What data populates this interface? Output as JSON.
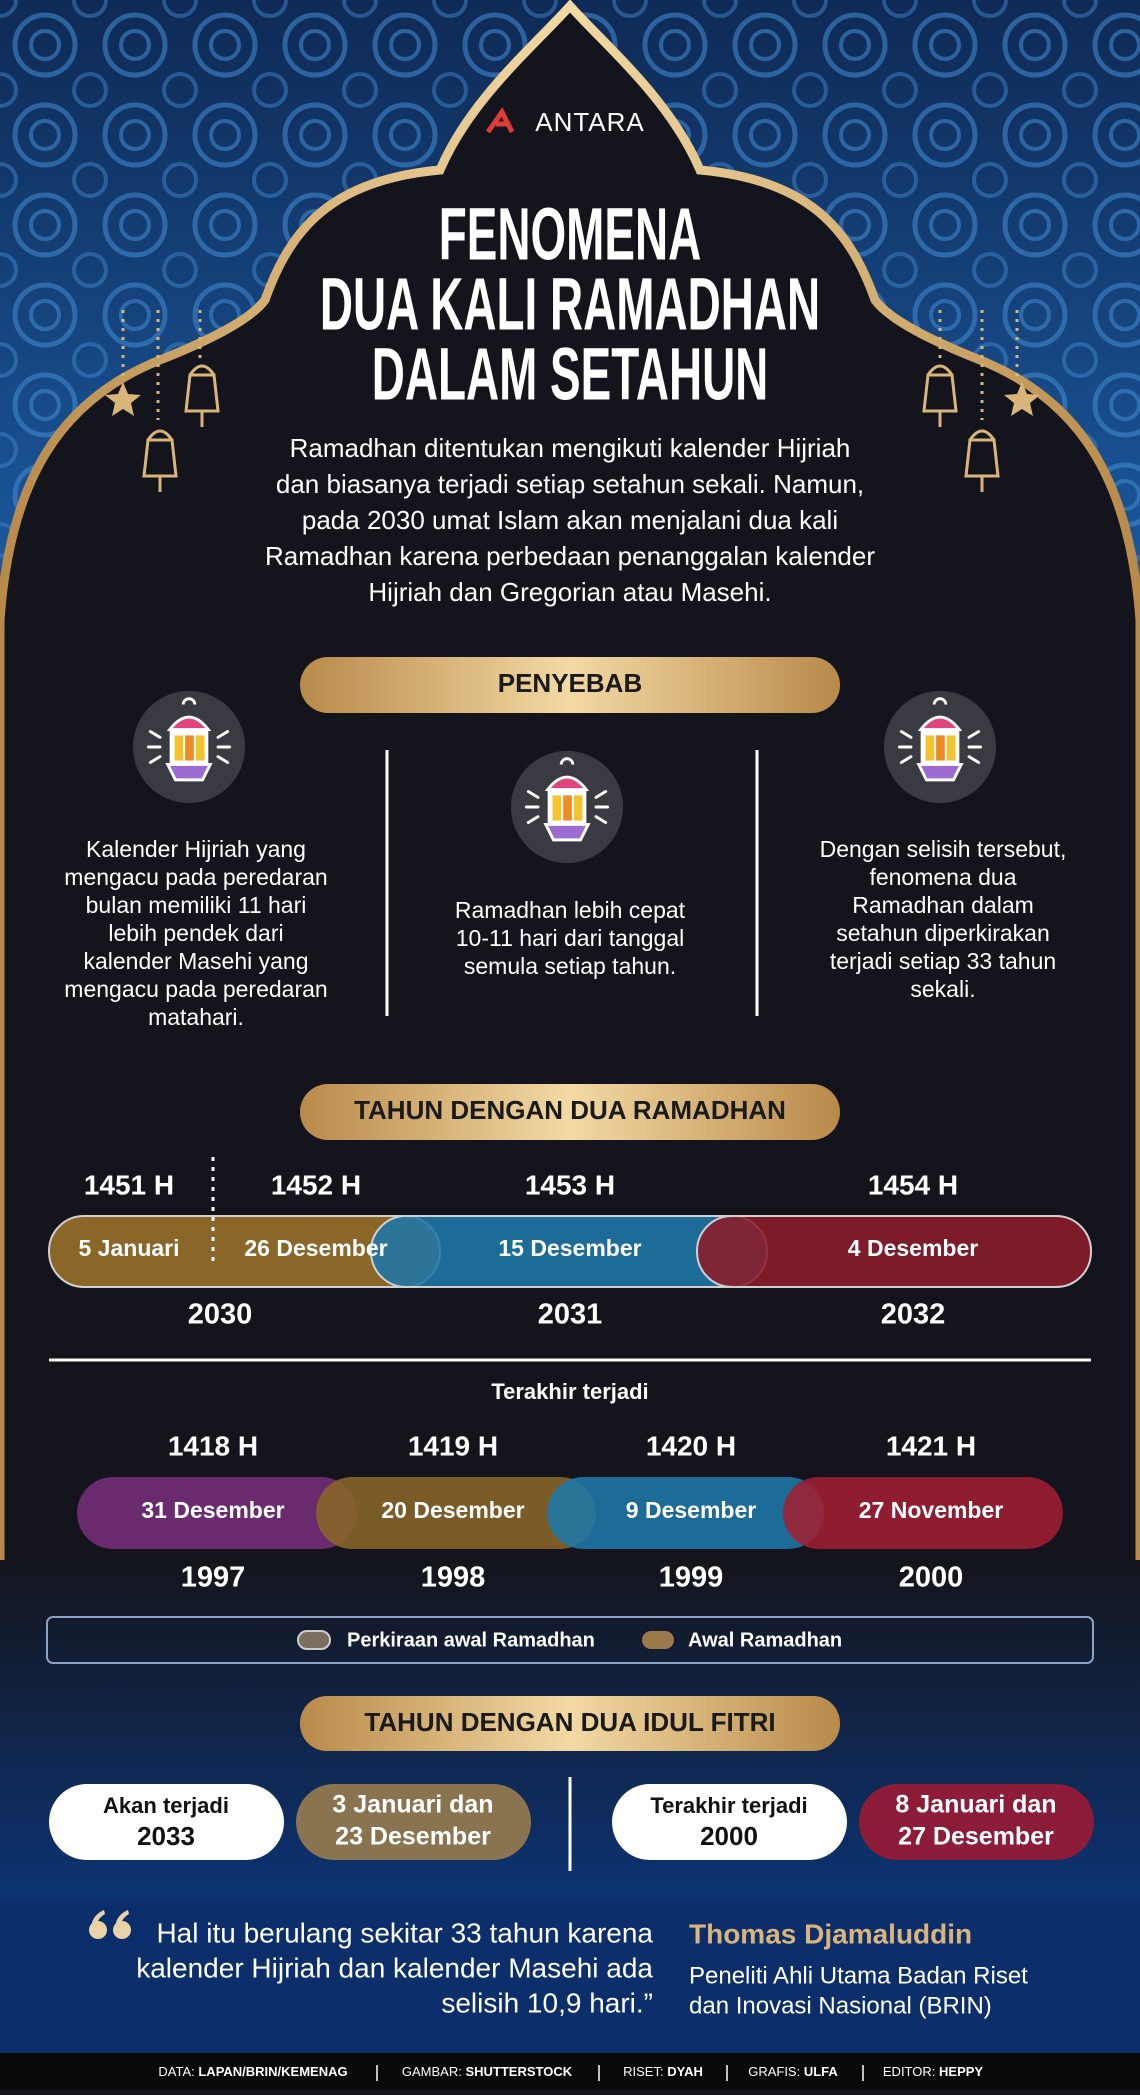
{
  "header": {
    "logo": "ANTARA",
    "title": [
      "FENOMENA",
      "DUA KALI RAMADHAN",
      "DALAM SETAHUN"
    ],
    "intro": [
      "Ramadhan ditentukan mengikuti kalender Hijriah",
      "dan biasanya terjadi setiap setahun sekali. Namun,",
      "pada 2030 umat Islam akan menjalani dua kali",
      "Ramadhan karena perbedaan penanggalan kalender",
      "Hijriah dan Gregorian atau Masehi."
    ]
  },
  "causes": {
    "heading": "PENYEBAB",
    "items": [
      [
        "Kalender Hijriah yang",
        "mengacu pada peredaran",
        "bulan memiliki 11 hari",
        "lebih pendek dari",
        "kalender Masehi yang",
        "mengacu pada peredaran",
        "matahari."
      ],
      [
        "Ramadhan lebih cepat",
        "10-11 hari dari tanggal",
        "semula setiap tahun."
      ],
      [
        "Dengan selisih tersebut,",
        "fenomena dua",
        "Ramadhan dalam",
        "setahun diperkirakan",
        "terjadi setiap 33 tahun",
        "sekali."
      ]
    ]
  },
  "two_ramadhan": {
    "heading": "TAHUN DENGAN DUA RAMADHAN",
    "upcoming": {
      "hijri": [
        "1451 H",
        "1452 H",
        "1453 H",
        "1454 H"
      ],
      "dates": [
        "5 Januari",
        "26 Desember",
        "15 Desember",
        "4 Desember"
      ],
      "years": [
        "2030",
        "2031",
        "2032"
      ]
    },
    "past_label": "Terakhir terjadi",
    "past": {
      "hijri": [
        "1418 H",
        "1419 H",
        "1420 H",
        "1421 H"
      ],
      "dates": [
        "31 Desember",
        "20 Desember",
        "9 Desember",
        "27 November"
      ],
      "years": [
        "1997",
        "1998",
        "1999",
        "2000"
      ]
    },
    "legend": [
      "Perkiraan awal Ramadhan",
      "Awal Ramadhan"
    ]
  },
  "two_idul_fitri": {
    "heading": "TAHUN DENGAN DUA IDUL FITRI",
    "upcoming": {
      "label": "Akan terjadi",
      "year": "2033",
      "dates": [
        "3 Januari dan",
        "23 Desember"
      ]
    },
    "past": {
      "label": "Terakhir terjadi",
      "year": "2000",
      "dates": [
        "8 Januari dan",
        "27 Desember"
      ]
    }
  },
  "quote": {
    "text": [
      "Hal itu berulang sekitar 33 tahun karena",
      "kalender Hijriah dan kalender Masehi ada",
      "selisih 10,9 hari.”"
    ],
    "author": "Thomas Djamaluddin",
    "role": [
      "Peneliti Ahli Utama Badan Riset",
      "dan Inovasi Nasional (BRIN)"
    ]
  },
  "footer": [
    {
      "label": "DATA:",
      "value": "LAPAN/BRIN/KEMENAG"
    },
    {
      "label": "GAMBAR:",
      "value": "SHUTTERSTOCK"
    },
    {
      "label": "RISET:",
      "value": "DYAH"
    },
    {
      "label": "GRAFIS:",
      "value": "ULFA"
    },
    {
      "label": "EDITOR:",
      "value": "HEPPY"
    }
  ]
}
